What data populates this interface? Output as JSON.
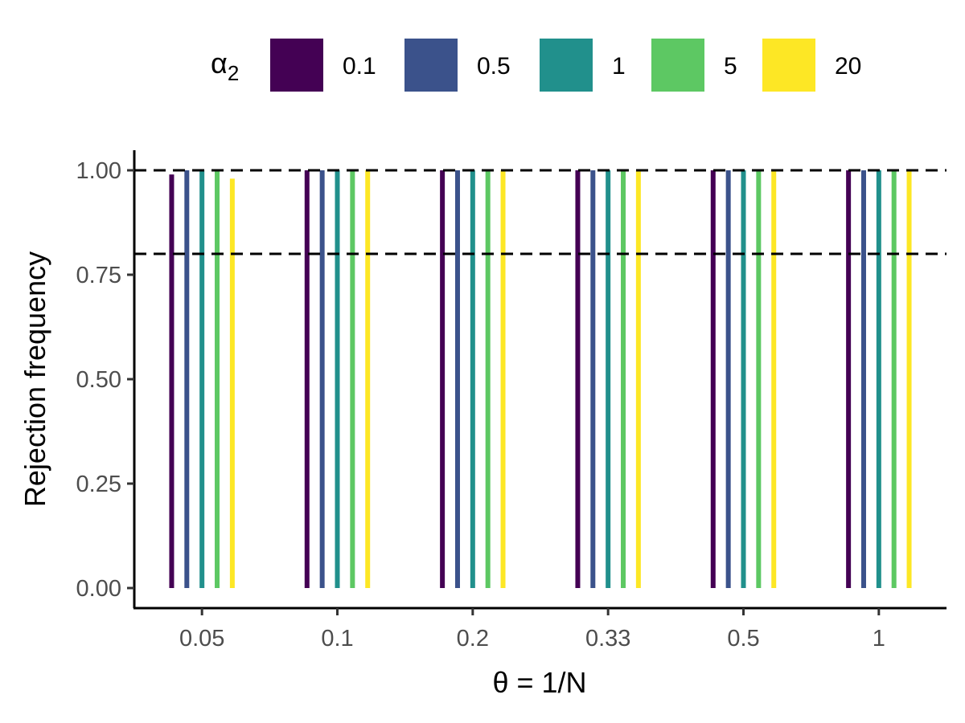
{
  "chart_data": {
    "type": "bar",
    "xlabel": "θ = 1/N",
    "ylabel": "Rejection frequency",
    "ylim": [
      -0.05,
      1.05
    ],
    "yticks": [
      "0.00",
      "0.25",
      "0.50",
      "0.75",
      "1.00"
    ],
    "ytick_values": [
      0,
      0.25,
      0.5,
      0.75,
      1.0
    ],
    "categories": [
      "0.05",
      "0.1",
      "0.2",
      "0.33",
      "0.5",
      "1"
    ],
    "reference_lines": [
      1.0,
      0.8
    ],
    "grid": false,
    "legend": {
      "title_main": "α",
      "title_sub": "2",
      "position": "top"
    },
    "series": [
      {
        "name": "0.1",
        "color": "#440154",
        "values": [
          0.99,
          1.0,
          1.0,
          1.0,
          1.0,
          1.0
        ]
      },
      {
        "name": "0.5",
        "color": "#3B528B",
        "values": [
          1.0,
          1.0,
          1.0,
          1.0,
          1.0,
          1.0
        ]
      },
      {
        "name": "1",
        "color": "#21908C",
        "values": [
          1.0,
          1.0,
          1.0,
          1.0,
          1.0,
          1.0
        ]
      },
      {
        "name": "5",
        "color": "#5DC863",
        "values": [
          1.0,
          1.0,
          1.0,
          1.0,
          1.0,
          1.0
        ]
      },
      {
        "name": "20",
        "color": "#FDE725",
        "values": [
          0.98,
          1.0,
          1.0,
          1.0,
          1.0,
          1.0
        ]
      }
    ]
  }
}
